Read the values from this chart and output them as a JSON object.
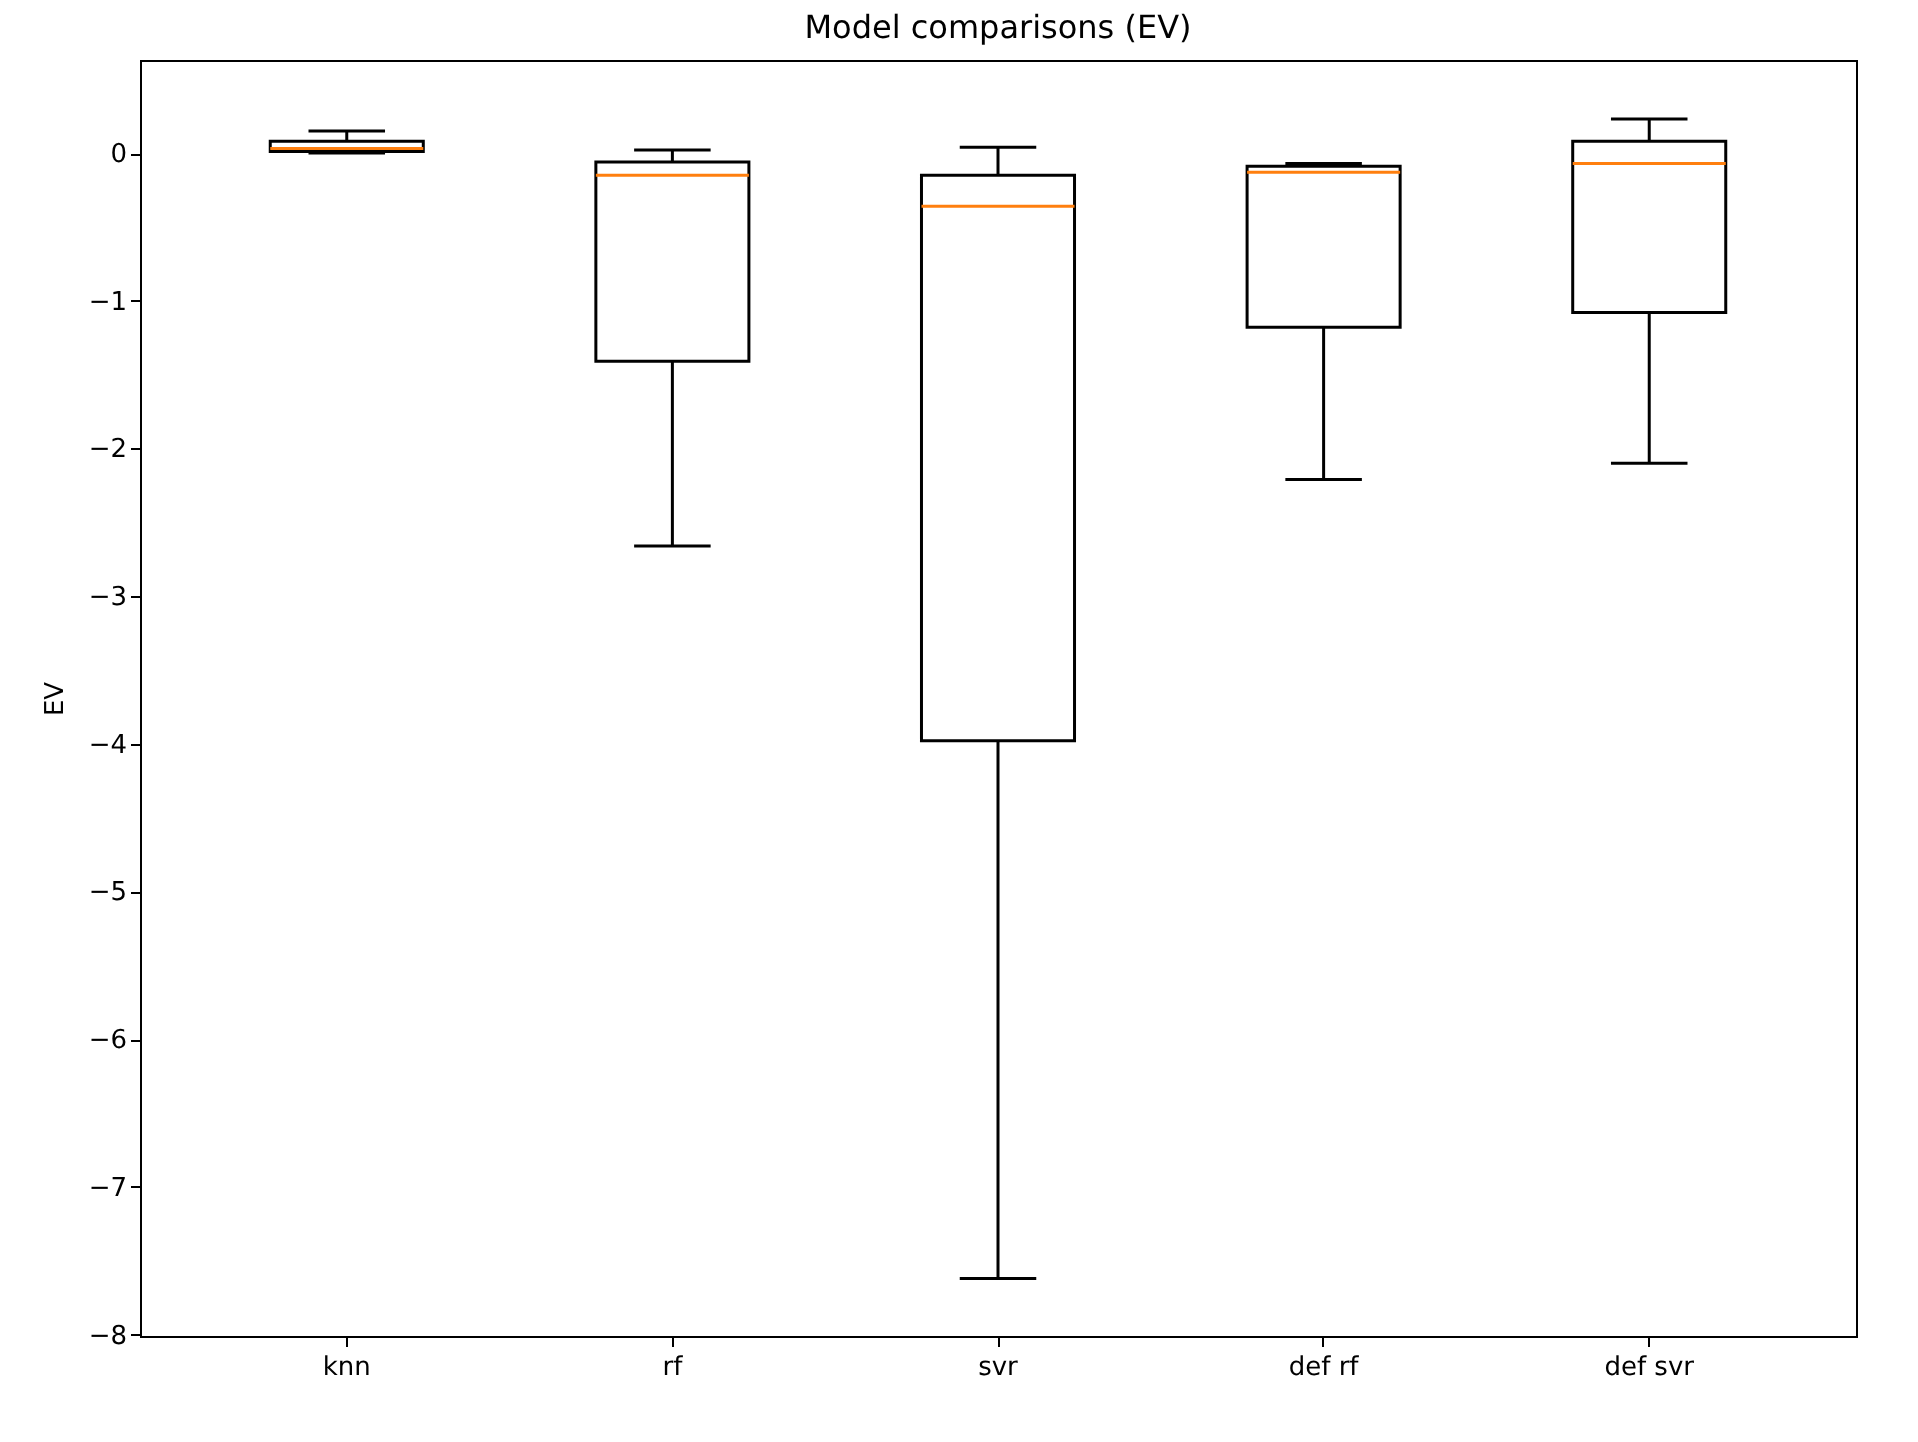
{
  "chart_data": {
    "type": "box",
    "title": "Model comparisons (EV)",
    "ylabel": "EV",
    "categories": [
      "knn",
      "rf",
      "svr",
      "def rf",
      "def svr"
    ],
    "boxes": [
      {
        "low": 0.0,
        "q1": 0.01,
        "median": 0.03,
        "q3": 0.08,
        "high": 0.15
      },
      {
        "low": -2.66,
        "q1": -1.41,
        "median": -0.15,
        "q3": -0.06,
        "high": 0.02
      },
      {
        "low": -7.62,
        "q1": -3.98,
        "median": -0.36,
        "q3": -0.15,
        "high": 0.04
      },
      {
        "low": -2.21,
        "q1": -1.18,
        "median": -0.13,
        "q3": -0.09,
        "high": -0.07
      },
      {
        "low": -2.1,
        "q1": -1.08,
        "median": -0.07,
        "q3": 0.08,
        "high": 0.23
      }
    ],
    "color": "#000000",
    "ylim": [
      -8.01,
      0.63
    ],
    "yticks": [
      -8,
      -7,
      -6,
      -5,
      -4,
      -3,
      -2,
      -1,
      0
    ],
    "grid": false
  }
}
